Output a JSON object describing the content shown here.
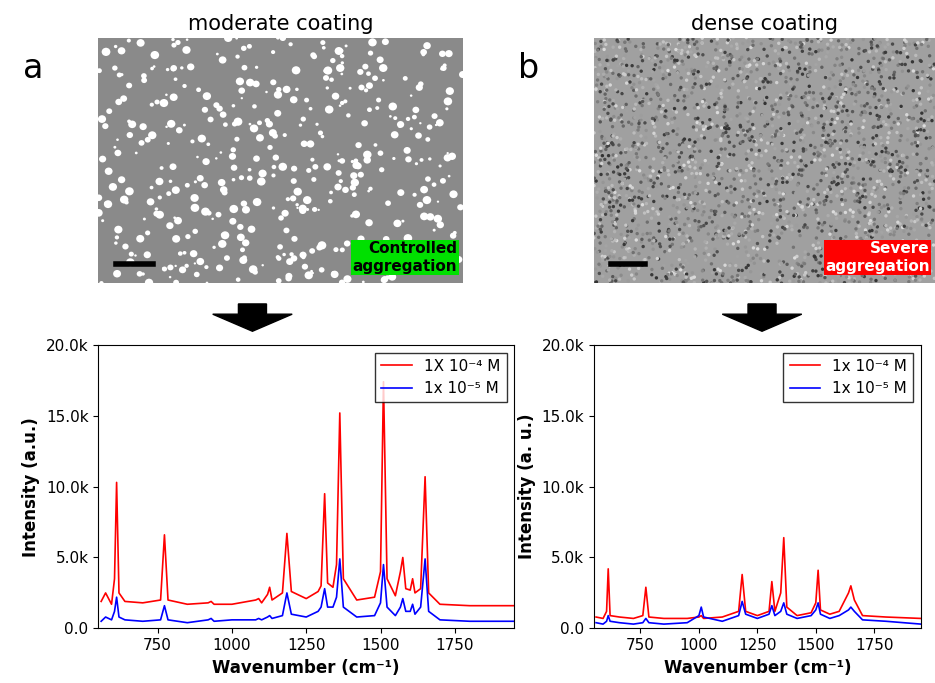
{
  "panels": [
    {
      "label": "a",
      "title": "moderate coating",
      "annotation": "Controlled\naggregation",
      "annotation_color": "#00e000"
    },
    {
      "label": "b",
      "title": "dense coating",
      "annotation": "Severe\naggregation",
      "annotation_color": "#ff0000"
    }
  ],
  "chart_data": [
    {
      "type": "line",
      "x_label": "Wavenumber (cm⁻¹)",
      "y_label": "Intensity (a.u.)",
      "legend": "upper right",
      "xlim": [
        550,
        1950
      ],
      "ylim": [
        0,
        20000
      ],
      "xticks": [
        750,
        1000,
        1250,
        1500,
        1750
      ],
      "yticks": [
        {
          "value": 0,
          "label": "0.0"
        },
        {
          "value": 5000,
          "label": "5.0k"
        },
        {
          "value": 10000,
          "label": "10.0k"
        },
        {
          "value": 15000,
          "label": "15.0k"
        },
        {
          "value": 20000,
          "label": "20.0k"
        }
      ],
      "x": [
        560,
        575,
        595,
        605,
        612,
        620,
        640,
        700,
        760,
        773,
        785,
        850,
        920,
        930,
        940,
        1000,
        1080,
        1090,
        1100,
        1120,
        1127,
        1135,
        1170,
        1185,
        1200,
        1250,
        1290,
        1300,
        1312,
        1322,
        1340,
        1352,
        1363,
        1375,
        1420,
        1480,
        1500,
        1510,
        1522,
        1550,
        1567,
        1575,
        1585,
        1600,
        1608,
        1616,
        1635,
        1650,
        1662,
        1700,
        1800,
        1950
      ],
      "series": [
        {
          "name": "1X 10⁻⁴ M",
          "color": "#ff0000",
          "values": [
            1900,
            2500,
            1700,
            3500,
            10300,
            2500,
            1900,
            1800,
            2000,
            6600,
            2000,
            1700,
            1800,
            1900,
            1700,
            1700,
            2000,
            2100,
            1800,
            2400,
            2900,
            2000,
            2500,
            6700,
            2600,
            2100,
            2600,
            3000,
            9500,
            3200,
            2900,
            4500,
            15200,
            3500,
            2000,
            2200,
            4000,
            17400,
            3500,
            2300,
            4000,
            5000,
            2800,
            2700,
            3500,
            2500,
            2800,
            10700,
            2500,
            1700,
            1600,
            1600
          ]
        },
        {
          "name": "1x 10⁻⁵ M",
          "color": "#0000ff",
          "values": [
            500,
            800,
            600,
            1200,
            2200,
            800,
            600,
            500,
            600,
            1600,
            600,
            400,
            600,
            700,
            500,
            600,
            600,
            700,
            600,
            800,
            900,
            700,
            900,
            2500,
            1000,
            800,
            1200,
            1500,
            2800,
            1500,
            1500,
            2200,
            4900,
            1500,
            800,
            900,
            1800,
            4500,
            1500,
            900,
            1500,
            2100,
            1200,
            1200,
            1700,
            1000,
            1500,
            4900,
            1200,
            600,
            500,
            500
          ]
        }
      ]
    },
    {
      "type": "line",
      "x_label": "Wavenumber (cm⁻¹)",
      "y_label": "Intensity (a. u.)",
      "legend": "upper right",
      "xlim": [
        550,
        1950
      ],
      "ylim": [
        0,
        20000
      ],
      "xticks": [
        750,
        1000,
        1250,
        1500,
        1750
      ],
      "yticks": [
        {
          "value": 0,
          "label": "0.0"
        },
        {
          "value": 5000,
          "label": "5.0k"
        },
        {
          "value": 10000,
          "label": "10.0k"
        },
        {
          "value": 15000,
          "label": "15.0k"
        },
        {
          "value": 20000,
          "label": "20.0k"
        }
      ],
      "x": [
        560,
        590,
        605,
        612,
        620,
        660,
        720,
        760,
        773,
        786,
        850,
        950,
        1000,
        1010,
        1020,
        1100,
        1170,
        1185,
        1200,
        1250,
        1300,
        1312,
        1325,
        1350,
        1363,
        1376,
        1420,
        1480,
        1500,
        1510,
        1520,
        1560,
        1600,
        1640,
        1650,
        1665,
        1700,
        1800,
        1950
      ],
      "series": [
        {
          "name": "1x 10⁻⁴ M",
          "color": "#ff0000",
          "values": [
            800,
            700,
            1200,
            4200,
            900,
            800,
            700,
            900,
            2900,
            800,
            700,
            700,
            800,
            900,
            700,
            800,
            1200,
            3800,
            1200,
            900,
            1200,
            3300,
            1200,
            2500,
            6400,
            1500,
            900,
            1100,
            1800,
            4100,
            1300,
            1000,
            1200,
            2500,
            3000,
            2000,
            900,
            800,
            700
          ]
        },
        {
          "name": "1x 10⁻⁵ M",
          "color": "#0000ff",
          "values": [
            400,
            300,
            500,
            900,
            500,
            400,
            300,
            400,
            700,
            400,
            300,
            400,
            900,
            1500,
            800,
            500,
            900,
            1900,
            1000,
            700,
            1000,
            1600,
            900,
            1200,
            1800,
            1000,
            700,
            900,
            1300,
            1800,
            1000,
            700,
            900,
            1300,
            1500,
            1200,
            600,
            500,
            300
          ]
        }
      ]
    }
  ]
}
